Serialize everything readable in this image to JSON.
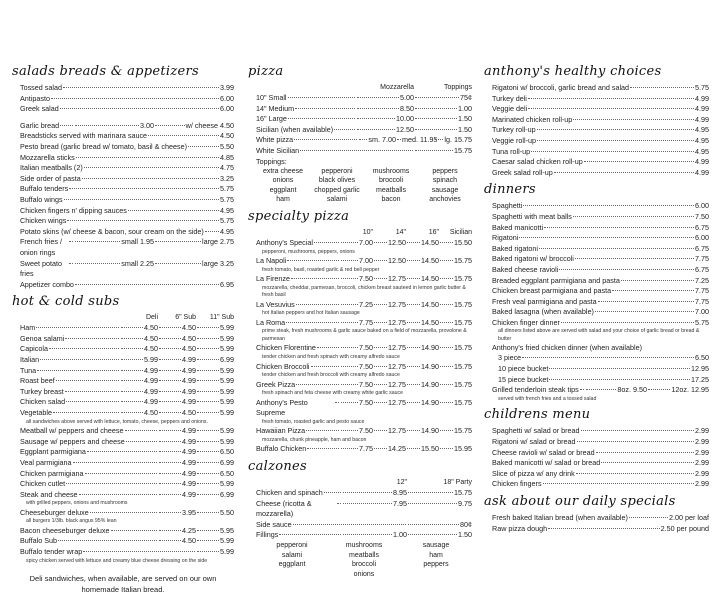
{
  "columns": [
    {
      "sections": [
        {
          "heading": "salads breads & appetizers",
          "cell_width": 80,
          "rows": [
            {
              "name": "Tossed salad",
              "prices": [
                "3.99"
              ]
            },
            {
              "name": "Antipasto",
              "prices": [
                "6.00"
              ]
            },
            {
              "name": "Greek salad",
              "prices": [
                "6.00"
              ]
            },
            {
              "gap": true
            },
            {
              "name": "Garlic bread",
              "prices": [
                "3.00",
                "w/ cheese 4.50"
              ]
            },
            {
              "name": "Breadsticks served with marinara sauce",
              "prices": [
                "4.50"
              ]
            },
            {
              "name": "Pesto bread (garlic bread w/ tomato, basil & cheese)",
              "prices": [
                "5.50"
              ]
            },
            {
              "name": "Mozzarella sticks",
              "prices": [
                "4.85"
              ]
            },
            {
              "name": "Italian meatballs (2)",
              "prices": [
                "4.75"
              ]
            },
            {
              "name": "Side order of pasta",
              "prices": [
                "3.25"
              ]
            },
            {
              "name": "Buffalo tenders",
              "prices": [
                "5.75"
              ]
            },
            {
              "name": "Buffalo wings",
              "prices": [
                "5.75"
              ]
            },
            {
              "name": "Chicken fingers n' dipping sauces",
              "prices": [
                "4.95"
              ]
            },
            {
              "name": "Chicken wings",
              "prices": [
                "5.75"
              ]
            },
            {
              "name": "Potato skins (w/ cheese & bacon, sour cream on the side)",
              "prices": [
                "4.95"
              ]
            },
            {
              "name": "French fries / onion rings",
              "prices": [
                "small 1.95",
                "large 2.75"
              ]
            },
            {
              "name": "Sweet potato fries",
              "prices": [
                "small 2.25",
                "large 3.25"
              ]
            },
            {
              "name": "Appetizer combo",
              "prices": [
                "6.95"
              ]
            }
          ]
        },
        {
          "heading": "hot & cold subs",
          "cell_width": 38,
          "columns_header": [
            "Deli",
            "6\" Sub",
            "11\" Sub"
          ],
          "rows": [
            {
              "name": "Ham",
              "prices": [
                "4.50",
                "4.50",
                "5.99"
              ]
            },
            {
              "name": "Genoa salami",
              "prices": [
                "4.50",
                "4.50",
                "5.99"
              ]
            },
            {
              "name": "Capicola",
              "prices": [
                "4.50",
                "4.50",
                "5.99"
              ]
            },
            {
              "name": "Italian",
              "prices": [
                "5.99",
                "4.99",
                "6.99"
              ]
            },
            {
              "name": "Tuna",
              "prices": [
                "4.99",
                "4.99",
                "5.99"
              ]
            },
            {
              "name": "Roast beef",
              "prices": [
                "4.99",
                "4.99",
                "5.99"
              ]
            },
            {
              "name": "Turkey breast",
              "prices": [
                "4.99",
                "4.99",
                "5.99"
              ]
            },
            {
              "name": "Chicken salad",
              "prices": [
                "4.99",
                "4.99",
                "5.99"
              ]
            },
            {
              "name": "Vegetable",
              "prices": [
                "4.50",
                "4.50",
                "5.99"
              ]
            },
            {
              "note": "all sandwiches above served with lettuce, tomato, cheese, peppers and onions."
            },
            {
              "name": "Meatball w/ peppers and cheese",
              "prices": [
                "4.99",
                "5.99"
              ]
            },
            {
              "name": "Sausage w/ peppers and cheese",
              "prices": [
                "4.99",
                "5.99"
              ]
            },
            {
              "name": "Eggplant parmigiana",
              "prices": [
                "4.99",
                "6.50"
              ]
            },
            {
              "name": "Veal parmigiana",
              "prices": [
                "4.99",
                "6.99"
              ]
            },
            {
              "name": "Chicken parmigiana",
              "prices": [
                "4.99",
                "6.50"
              ]
            },
            {
              "name": "Chicken cutlet",
              "prices": [
                "4.99",
                "5.99"
              ]
            },
            {
              "name": "Steak and cheese",
              "prices": [
                "4.99",
                "6.99"
              ]
            },
            {
              "note": "with grilled peppers, onions and mushrooms"
            },
            {
              "name": "Cheeseburger deluxe",
              "prices": [
                "3.95",
                "5.50"
              ]
            },
            {
              "note": "all burgers 1/3lb. black angus 95% lean"
            },
            {
              "name": "Bacon cheeseburger deluxe",
              "prices": [
                "4.25",
                "5.95"
              ]
            },
            {
              "name": "Buffalo Sub",
              "prices": [
                "4.50",
                "5.99"
              ]
            },
            {
              "name": "Buffalo tender wrap",
              "prices": [
                "5.99"
              ]
            },
            {
              "note": "spicy chicken served with lettuce and creamy blue cheese dressing on the side"
            }
          ],
          "footer": [
            "Deli sandwiches, when available, are served on our own",
            "homemade Italian bread."
          ]
        }
      ]
    },
    {
      "sections": [
        {
          "heading": "pizza",
          "cell_width": 58,
          "columns_header": [
            "Mozzarella",
            "Toppings"
          ],
          "rows": [
            {
              "name": "10\" Small",
              "prices": [
                "5.00",
                "75¢"
              ]
            },
            {
              "name": "14\" Medium",
              "prices": [
                "8.50",
                "1.00"
              ]
            },
            {
              "name": "16\" Large",
              "prices": [
                "10.00",
                "1.50"
              ]
            },
            {
              "name": "Sicilian (when available)",
              "prices": [
                "12.50",
                "1.50"
              ]
            },
            {
              "name": "White pizza",
              "prices": [
                "sm. 7.00",
                "med. 11.95",
                "lg. 15.75"
              ]
            },
            {
              "name": "White Sicilian",
              "prices": [
                "15.75"
              ]
            },
            {
              "sub": "Toppings:"
            },
            {
              "grid": [
                "extra cheese",
                "pepperoni",
                "mushrooms",
                "peppers",
                "onions",
                "black olives",
                "broccoli",
                "spinach",
                "eggplant",
                "chopped garlic",
                "meatballs",
                "sausage",
                "ham",
                "salami",
                "bacon",
                "anchovies"
              ],
              "cols": 4
            }
          ]
        },
        {
          "heading": "specialty pizza",
          "cell_width": 33,
          "columns_header": [
            "10\"",
            "14\"",
            "16\"",
            "Sicilian"
          ],
          "rows": [
            {
              "name": "Anthony's Special",
              "prices": [
                "7.00",
                "12.50",
                "14.50",
                "15.50"
              ]
            },
            {
              "note": "pepperoni, mushrooms, peppers, onions"
            },
            {
              "name": "La Napoli",
              "prices": [
                "7.00",
                "12.50",
                "14.50",
                "15.75"
              ]
            },
            {
              "note": "fresh tomato, basil, roasted garlic & red bell pepper"
            },
            {
              "name": "La Firenze",
              "prices": [
                "7.50",
                "12.75",
                "14.50",
                "15.75"
              ]
            },
            {
              "note": "mozzarella, cheddar, parmesan, broccoli, chicken breast sauteed in lemon garlic butter & fresh basil"
            },
            {
              "name": "La Vesuvius",
              "prices": [
                "7.25",
                "12.75",
                "14.50",
                "15.75"
              ]
            },
            {
              "note": "hot Italian peppers and hot Italian sausage"
            },
            {
              "name": "La Roma",
              "prices": [
                "7.75",
                "12.75",
                "14.50",
                "15.75"
              ]
            },
            {
              "note": "prime steak, fresh mushrooms & garlic sauce baked on a field of mozzarella, provolone & parmesan"
            },
            {
              "name": "Chicken Florentine",
              "prices": [
                "7.50",
                "12.75",
                "14.90",
                "15.75"
              ]
            },
            {
              "note": "tender chicken and fresh spinach with creamy alfredo sauce"
            },
            {
              "name": "Chicken Broccoli",
              "prices": [
                "7.50",
                "12.75",
                "14.90",
                "15.75"
              ]
            },
            {
              "note": "tender chicken and fresh broccoli with creamy alfredo sauce"
            },
            {
              "name": "Greek Pizza",
              "prices": [
                "7.50",
                "12.75",
                "14.90",
                "15.75"
              ]
            },
            {
              "note": "fresh spinach and feta cheese with creamy white garlic sauce"
            },
            {
              "name": "Anthony's Pesto Supreme",
              "prices": [
                "7.50",
                "12.75",
                "14.90",
                "15.75"
              ]
            },
            {
              "note": "fresh tomato, roasted garlic and pesto sauce"
            },
            {
              "name": "Hawaiian Pizza",
              "prices": [
                "7.50",
                "12.75",
                "14.90",
                "15.75"
              ]
            },
            {
              "note": "mozzarella, chunk pineapple, ham and bacon"
            },
            {
              "name": "Buffalo Chicken",
              "prices": [
                "7.75",
                "14.25",
                "15.50",
                "15.95"
              ]
            }
          ]
        },
        {
          "heading": "calzones",
          "cell_width": 65,
          "columns_header": [
            "12\"",
            "18\" Party"
          ],
          "rows": [
            {
              "name": "Chicken and spinach",
              "prices": [
                "8.95",
                "15.75"
              ]
            },
            {
              "name": "Cheese (ricotta & mozzarella)",
              "prices": [
                "7.95",
                "9.75"
              ]
            },
            {
              "name": "Side sauce",
              "prices": [
                "80¢"
              ]
            },
            {
              "name": "Fillings",
              "prices": [
                "1.00",
                "1.50"
              ]
            },
            {
              "grid": [
                "pepperoni",
                "mushrooms",
                "sausage",
                "salami",
                "meatballs",
                "ham",
                "eggplant",
                "broccoli",
                "peppers",
                "",
                "onions",
                ""
              ],
              "cols": 3
            }
          ]
        }
      ]
    },
    {
      "sections": [
        {
          "heading": "anthony's healthy choices",
          "cell_width": 40,
          "rows": [
            {
              "name": "Rigatoni w/ broccoli, garlic bread and salad",
              "prices": [
                "5.75"
              ]
            },
            {
              "name": "Turkey deli",
              "prices": [
                "4.99"
              ]
            },
            {
              "name": "Veggie deli",
              "prices": [
                "4.99"
              ]
            },
            {
              "name": "Marinated chicken roll-up",
              "prices": [
                "4.99"
              ]
            },
            {
              "name": "Turkey roll-up",
              "prices": [
                "4.95"
              ]
            },
            {
              "name": "Veggie roll-up",
              "prices": [
                "4.95"
              ]
            },
            {
              "name": "Tuna roll-up",
              "prices": [
                "4.95"
              ]
            },
            {
              "name": "Caesar salad chicken roll-up",
              "prices": [
                "4.99"
              ]
            },
            {
              "name": "Greek salad roll-up",
              "prices": [
                "4.99"
              ]
            }
          ]
        },
        {
          "heading": "dinners",
          "cell_width": 62,
          "rows": [
            {
              "name": "Spaghetti",
              "prices": [
                "6.00"
              ]
            },
            {
              "name": "Spaghetti with meat balls",
              "prices": [
                "7.50"
              ]
            },
            {
              "name": "Baked manicotti",
              "prices": [
                "6.75"
              ]
            },
            {
              "name": "Rigatoni",
              "prices": [
                "6.00"
              ]
            },
            {
              "name": "Baked rigatoni",
              "prices": [
                "6.75"
              ]
            },
            {
              "name": "Baked rigatoni w/ broccoli",
              "prices": [
                "7.75"
              ]
            },
            {
              "name": "Baked cheese ravioli",
              "prices": [
                "6.75"
              ]
            },
            {
              "name": "Breaded eggplant parmigiana and pasta",
              "prices": [
                "7.25"
              ]
            },
            {
              "name": "Chicken breast parmigiana and pasta",
              "prices": [
                "7.75"
              ]
            },
            {
              "name": "Fresh veal parmigiana and pasta",
              "prices": [
                "7.75"
              ]
            },
            {
              "name": "Baked lasagna (when available)",
              "prices": [
                "7.00"
              ]
            },
            {
              "name": "Chicken finger dinner",
              "prices": [
                "5.75"
              ]
            },
            {
              "note": "all dinners listed above are served with salad and your choice of garlic bread or bread & butter"
            },
            {
              "sub": "Anthony's fried chicken dinner (when available)"
            },
            {
              "name": "3 piece",
              "prices": [
                "6.50"
              ],
              "indent": true
            },
            {
              "name": "10 piece bucket",
              "prices": [
                "12.95"
              ],
              "indent": true
            },
            {
              "name": "15 piece bucket",
              "prices": [
                "17.25"
              ],
              "indent": true
            },
            {
              "name": "Grilled tenderloin steak tips",
              "prices": [
                "8oz. 9.50",
                "12oz. 12.95"
              ]
            },
            {
              "note": "served with french fries and a tossed salad"
            }
          ]
        },
        {
          "heading": "childrens menu",
          "cell_width": 40,
          "rows": [
            {
              "name": "Spaghetti w/ salad or bread",
              "prices": [
                "2.99"
              ]
            },
            {
              "name": "Rigatoni w/ salad or bread",
              "prices": [
                "2.99"
              ]
            },
            {
              "name": "Cheese ravioli w/ salad or bread",
              "prices": [
                "2.99"
              ]
            },
            {
              "name": "Baked manicotti w/ salad or bread",
              "prices": [
                "2.99"
              ]
            },
            {
              "name": "Slice of pizza w/ any drink",
              "prices": [
                "2.99"
              ]
            },
            {
              "name": "Chicken fingers",
              "prices": [
                "2.99"
              ]
            }
          ]
        },
        {
          "heading": "ask about our daily specials",
          "cell_width": 60,
          "rows": [
            {
              "name": "Fresh baked Italian bread (when available)",
              "prices": [
                "2.00 per loaf"
              ]
            },
            {
              "name": "Raw pizza dough",
              "prices": [
                "2.50 per pound"
              ]
            }
          ]
        }
      ]
    }
  ]
}
